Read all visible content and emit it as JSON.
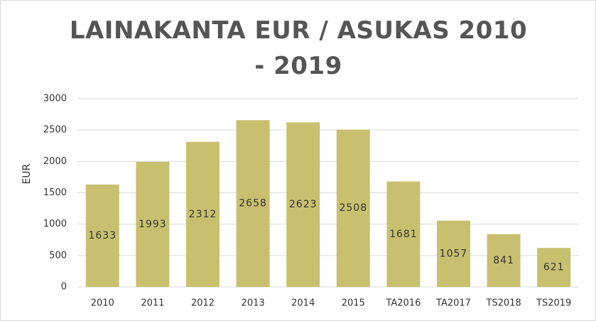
{
  "chart_data": {
    "type": "bar",
    "title": "LAINAKANTA EUR / ASUKAS 2010 - 2019",
    "y_label": "EUR",
    "categories": [
      "2010",
      "2011",
      "2012",
      "2013",
      "2014",
      "2015",
      "TA2016",
      "TA2017",
      "TS2018",
      "TS2019"
    ],
    "values": [
      1633,
      1993,
      2312,
      2658,
      2623,
      2508,
      1681,
      1057,
      841,
      621
    ],
    "color": "#c9c06f",
    "ylim": [
      0,
      3000
    ],
    "yticks": [
      0,
      500,
      1000,
      1500,
      2000,
      2500,
      3000
    ],
    "grid": true
  }
}
